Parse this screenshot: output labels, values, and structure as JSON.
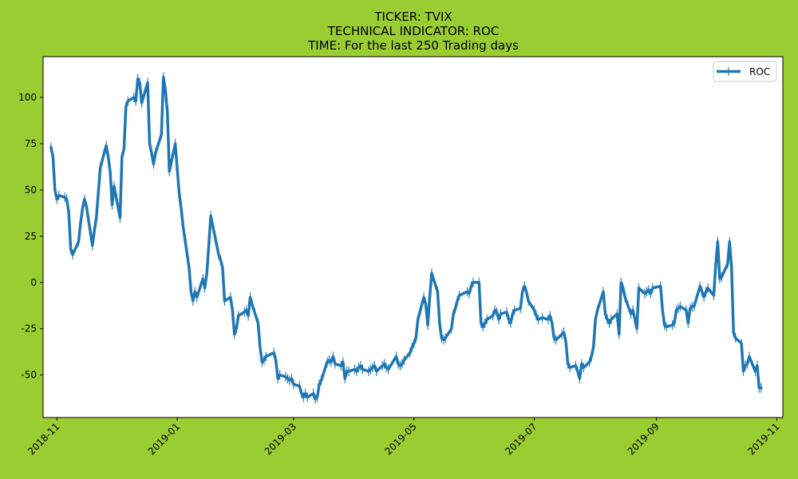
{
  "chart_data": {
    "type": "line",
    "title_lines": [
      "TICKER:  TVIX",
      "TECHNICAL INDICATOR:  ROC",
      "TIME: For the last 250 Trading days"
    ],
    "xlabel": "",
    "ylabel": "",
    "x_axis": "date",
    "xlim": [
      "2018-10-25",
      "2019-11-04"
    ],
    "ylim": [
      -73,
      122
    ],
    "x_ticks": [
      "2018-11",
      "2019-01",
      "2019-03",
      "2019-05",
      "2019-07",
      "2019-09",
      "2019-11"
    ],
    "x_tick_dates": [
      "2018-11-01",
      "2019-01-01",
      "2019-03-01",
      "2019-05-01",
      "2019-07-01",
      "2019-09-01",
      "2019-11-01"
    ],
    "y_ticks": [
      100,
      75,
      50,
      25,
      0,
      -25,
      -50
    ],
    "grid": false,
    "legend_position": "top-right",
    "colors": {
      "background": "#9acd32",
      "plot_area": "#ffffff",
      "line": "#1f77b4"
    },
    "series": [
      {
        "name": "ROC",
        "points": [
          [
            "2018-10-29",
            73
          ],
          [
            "2018-10-30",
            68
          ],
          [
            "2018-10-31",
            50
          ],
          [
            "2018-11-01",
            45
          ],
          [
            "2018-11-02",
            47
          ],
          [
            "2018-11-05",
            46
          ],
          [
            "2018-11-06",
            45
          ],
          [
            "2018-11-07",
            38
          ],
          [
            "2018-11-08",
            18
          ],
          [
            "2018-11-09",
            15
          ],
          [
            "2018-11-12",
            22
          ],
          [
            "2018-11-13",
            32
          ],
          [
            "2018-11-14",
            40
          ],
          [
            "2018-11-15",
            45
          ],
          [
            "2018-11-16",
            41
          ],
          [
            "2018-11-19",
            20
          ],
          [
            "2018-11-20",
            28
          ],
          [
            "2018-11-21",
            35
          ],
          [
            "2018-11-23",
            62
          ],
          [
            "2018-11-26",
            74
          ],
          [
            "2018-11-27",
            68
          ],
          [
            "2018-11-28",
            60
          ],
          [
            "2018-11-29",
            42
          ],
          [
            "2018-11-30",
            52
          ],
          [
            "2018-12-03",
            35
          ],
          [
            "2018-12-04",
            68
          ],
          [
            "2018-12-05",
            72
          ],
          [
            "2018-12-06",
            95
          ],
          [
            "2018-12-07",
            98
          ],
          [
            "2018-12-10",
            100
          ],
          [
            "2018-12-11",
            98
          ],
          [
            "2018-12-12",
            110
          ],
          [
            "2018-12-13",
            108
          ],
          [
            "2018-12-14",
            97
          ],
          [
            "2018-12-17",
            108
          ],
          [
            "2018-12-18",
            75
          ],
          [
            "2018-12-19",
            70
          ],
          [
            "2018-12-20",
            64
          ],
          [
            "2018-12-21",
            70
          ],
          [
            "2018-12-24",
            80
          ],
          [
            "2018-12-25",
            111
          ],
          [
            "2018-12-26",
            104
          ],
          [
            "2018-12-27",
            92
          ],
          [
            "2018-12-28",
            60
          ],
          [
            "2018-12-31",
            75
          ],
          [
            "2019-01-02",
            48
          ],
          [
            "2019-01-03",
            40
          ],
          [
            "2019-01-04",
            30
          ],
          [
            "2019-01-07",
            8
          ],
          [
            "2019-01-08",
            -5
          ],
          [
            "2019-01-09",
            -10
          ],
          [
            "2019-01-10",
            -5
          ],
          [
            "2019-01-11",
            -8
          ],
          [
            "2019-01-14",
            2
          ],
          [
            "2019-01-15",
            -3
          ],
          [
            "2019-01-16",
            5
          ],
          [
            "2019-01-17",
            20
          ],
          [
            "2019-01-18",
            36
          ],
          [
            "2019-01-22",
            15
          ],
          [
            "2019-01-23",
            12
          ],
          [
            "2019-01-24",
            8
          ],
          [
            "2019-01-25",
            -10
          ],
          [
            "2019-01-28",
            -8
          ],
          [
            "2019-01-29",
            -15
          ],
          [
            "2019-01-30",
            -28
          ],
          [
            "2019-01-31",
            -25
          ],
          [
            "2019-02-01",
            -18
          ],
          [
            "2019-02-04",
            -16
          ],
          [
            "2019-02-05",
            -15
          ],
          [
            "2019-02-06",
            -18
          ],
          [
            "2019-02-07",
            -8
          ],
          [
            "2019-02-08",
            -12
          ],
          [
            "2019-02-11",
            -22
          ],
          [
            "2019-02-12",
            -35
          ],
          [
            "2019-02-13",
            -43
          ],
          [
            "2019-02-14",
            -42
          ],
          [
            "2019-02-15",
            -40
          ],
          [
            "2019-02-19",
            -38
          ],
          [
            "2019-02-20",
            -42
          ],
          [
            "2019-02-21",
            -52
          ],
          [
            "2019-02-22",
            -50
          ],
          [
            "2019-02-25",
            -51
          ],
          [
            "2019-02-26",
            -52
          ],
          [
            "2019-02-27",
            -53
          ],
          [
            "2019-02-28",
            -52
          ],
          [
            "2019-03-01",
            -55
          ],
          [
            "2019-03-04",
            -56
          ],
          [
            "2019-03-05",
            -60
          ],
          [
            "2019-03-06",
            -62
          ],
          [
            "2019-03-07",
            -60
          ],
          [
            "2019-03-08",
            -62
          ],
          [
            "2019-03-11",
            -60
          ],
          [
            "2019-03-12",
            -63
          ],
          [
            "2019-03-13",
            -62
          ],
          [
            "2019-03-14",
            -55
          ],
          [
            "2019-03-15",
            -53
          ],
          [
            "2019-03-18",
            -43
          ],
          [
            "2019-03-19",
            -42
          ],
          [
            "2019-03-20",
            -43
          ],
          [
            "2019-03-21",
            -40
          ],
          [
            "2019-03-22",
            -44
          ],
          [
            "2019-03-25",
            -45
          ],
          [
            "2019-03-26",
            -43
          ],
          [
            "2019-03-27",
            -52
          ],
          [
            "2019-03-28",
            -48
          ],
          [
            "2019-03-29",
            -48
          ],
          [
            "2019-04-01",
            -47
          ],
          [
            "2019-04-02",
            -48
          ],
          [
            "2019-04-03",
            -46
          ],
          [
            "2019-04-04",
            -45
          ],
          [
            "2019-04-05",
            -47
          ],
          [
            "2019-04-08",
            -48
          ],
          [
            "2019-04-09",
            -47
          ],
          [
            "2019-04-10",
            -46
          ],
          [
            "2019-04-11",
            -45
          ],
          [
            "2019-04-12",
            -48
          ],
          [
            "2019-04-15",
            -45
          ],
          [
            "2019-04-16",
            -44
          ],
          [
            "2019-04-17",
            -46
          ],
          [
            "2019-04-18",
            -47
          ],
          [
            "2019-04-22",
            -40
          ],
          [
            "2019-04-23",
            -44
          ],
          [
            "2019-04-24",
            -45
          ],
          [
            "2019-04-25",
            -44
          ],
          [
            "2019-04-26",
            -42
          ],
          [
            "2019-04-29",
            -38
          ],
          [
            "2019-04-30",
            -35
          ],
          [
            "2019-05-01",
            -33
          ],
          [
            "2019-05-02",
            -30
          ],
          [
            "2019-05-03",
            -20
          ],
          [
            "2019-05-06",
            -8
          ],
          [
            "2019-05-07",
            -12
          ],
          [
            "2019-05-08",
            -23
          ],
          [
            "2019-05-09",
            -8
          ],
          [
            "2019-05-10",
            5
          ],
          [
            "2019-05-13",
            -5
          ],
          [
            "2019-05-14",
            -22
          ],
          [
            "2019-05-15",
            -30
          ],
          [
            "2019-05-16",
            -31
          ],
          [
            "2019-05-17",
            -30
          ],
          [
            "2019-05-20",
            -25
          ],
          [
            "2019-05-21",
            -17
          ],
          [
            "2019-05-22",
            -14
          ],
          [
            "2019-05-23",
            -10
          ],
          [
            "2019-05-24",
            -7
          ],
          [
            "2019-05-28",
            -5
          ],
          [
            "2019-05-29",
            -6
          ],
          [
            "2019-05-30",
            -2
          ],
          [
            "2019-05-31",
            0
          ],
          [
            "2019-06-03",
            0
          ],
          [
            "2019-06-04",
            -22
          ],
          [
            "2019-06-05",
            -24
          ],
          [
            "2019-06-06",
            -22
          ],
          [
            "2019-06-07",
            -20
          ],
          [
            "2019-06-10",
            -18
          ],
          [
            "2019-06-11",
            -15
          ],
          [
            "2019-06-12",
            -16
          ],
          [
            "2019-06-13",
            -20
          ],
          [
            "2019-06-14",
            -17
          ],
          [
            "2019-06-17",
            -16
          ],
          [
            "2019-06-18",
            -20
          ],
          [
            "2019-06-19",
            -22
          ],
          [
            "2019-06-20",
            -17
          ],
          [
            "2019-06-21",
            -15
          ],
          [
            "2019-06-24",
            -14
          ],
          [
            "2019-06-25",
            -5
          ],
          [
            "2019-06-26",
            -2
          ],
          [
            "2019-06-27",
            -5
          ],
          [
            "2019-06-28",
            -10
          ],
          [
            "2019-07-01",
            -15
          ],
          [
            "2019-07-02",
            -18
          ],
          [
            "2019-07-03",
            -20
          ],
          [
            "2019-07-05",
            -19
          ],
          [
            "2019-07-08",
            -20
          ],
          [
            "2019-07-09",
            -18
          ],
          [
            "2019-07-10",
            -22
          ],
          [
            "2019-07-11",
            -30
          ],
          [
            "2019-07-12",
            -31
          ],
          [
            "2019-07-15",
            -28
          ],
          [
            "2019-07-16",
            -27
          ],
          [
            "2019-07-17",
            -32
          ],
          [
            "2019-07-18",
            -44
          ],
          [
            "2019-07-19",
            -46
          ],
          [
            "2019-07-22",
            -45
          ],
          [
            "2019-07-23",
            -48
          ],
          [
            "2019-07-24",
            -52
          ],
          [
            "2019-07-25",
            -44
          ],
          [
            "2019-07-26",
            -46
          ],
          [
            "2019-07-29",
            -43
          ],
          [
            "2019-07-30",
            -40
          ],
          [
            "2019-07-31",
            -35
          ],
          [
            "2019-08-01",
            -20
          ],
          [
            "2019-08-02",
            -15
          ],
          [
            "2019-08-05",
            -5
          ],
          [
            "2019-08-06",
            -17
          ],
          [
            "2019-08-07",
            -20
          ],
          [
            "2019-08-08",
            -22
          ],
          [
            "2019-08-09",
            -20
          ],
          [
            "2019-08-12",
            -17
          ],
          [
            "2019-08-13",
            -28
          ],
          [
            "2019-08-14",
            0
          ],
          [
            "2019-08-15",
            -3
          ],
          [
            "2019-08-16",
            -8
          ],
          [
            "2019-08-19",
            -17
          ],
          [
            "2019-08-20",
            -15
          ],
          [
            "2019-08-21",
            -20
          ],
          [
            "2019-08-22",
            -25
          ],
          [
            "2019-08-23",
            -3
          ],
          [
            "2019-08-26",
            -6
          ],
          [
            "2019-08-27",
            -5
          ],
          [
            "2019-08-28",
            -4
          ],
          [
            "2019-08-29",
            -6
          ],
          [
            "2019-08-30",
            -3
          ],
          [
            "2019-09-03",
            -2
          ],
          [
            "2019-09-04",
            -15
          ],
          [
            "2019-09-05",
            -23
          ],
          [
            "2019-09-06",
            -24
          ],
          [
            "2019-09-09",
            -23
          ],
          [
            "2019-09-10",
            -22
          ],
          [
            "2019-09-11",
            -15
          ],
          [
            "2019-09-12",
            -14
          ],
          [
            "2019-09-13",
            -13
          ],
          [
            "2019-09-16",
            -15
          ],
          [
            "2019-09-17",
            -22
          ],
          [
            "2019-09-18",
            -14
          ],
          [
            "2019-09-19",
            -13
          ],
          [
            "2019-09-20",
            -13
          ],
          [
            "2019-09-23",
            -2
          ],
          [
            "2019-09-24",
            -5
          ],
          [
            "2019-09-25",
            -8
          ],
          [
            "2019-09-26",
            -5
          ],
          [
            "2019-09-27",
            -3
          ],
          [
            "2019-09-30",
            -7
          ],
          [
            "2019-10-01",
            10
          ],
          [
            "2019-10-02",
            22
          ],
          [
            "2019-10-03",
            2
          ],
          [
            "2019-10-04",
            3
          ],
          [
            "2019-10-07",
            10
          ],
          [
            "2019-10-08",
            22
          ],
          [
            "2019-10-09",
            8
          ],
          [
            "2019-10-10",
            -27
          ],
          [
            "2019-10-11",
            -30
          ],
          [
            "2019-10-14",
            -33
          ],
          [
            "2019-10-15",
            -48
          ],
          [
            "2019-10-16",
            -45
          ],
          [
            "2019-10-17",
            -44
          ],
          [
            "2019-10-18",
            -40
          ],
          [
            "2019-10-21",
            -48
          ],
          [
            "2019-10-22",
            -45
          ],
          [
            "2019-10-23",
            -57
          ],
          [
            "2019-10-24",
            -57
          ]
        ]
      }
    ]
  }
}
